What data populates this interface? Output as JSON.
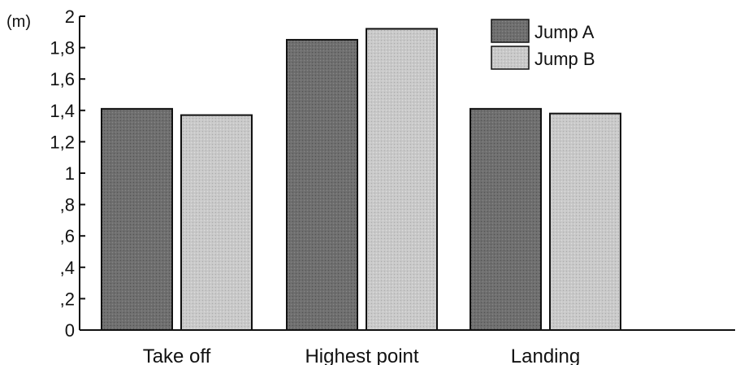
{
  "chart_data": {
    "type": "bar",
    "title": "",
    "xlabel": "",
    "ylabel": "(m)",
    "categories": [
      "Take off",
      "Highest point",
      "Landing"
    ],
    "series": [
      {
        "name": "Jump A",
        "values": [
          1.41,
          1.85,
          1.41
        ]
      },
      {
        "name": "Jump B",
        "values": [
          1.37,
          1.92,
          1.38
        ]
      }
    ],
    "ylim": [
      0,
      2
    ],
    "yticks": [
      {
        "value": 0,
        "label": "0"
      },
      {
        "value": 0.2,
        "label": ",2"
      },
      {
        "value": 0.4,
        "label": ",4"
      },
      {
        "value": 0.6,
        "label": ",6"
      },
      {
        "value": 0.8,
        "label": ",8"
      },
      {
        "value": 1.0,
        "label": "1"
      },
      {
        "value": 1.2,
        "label": "1,2"
      },
      {
        "value": 1.4,
        "label": "1,4"
      },
      {
        "value": 1.6,
        "label": "1,6"
      },
      {
        "value": 1.8,
        "label": "1,8"
      },
      {
        "value": 2.0,
        "label": "2"
      }
    ],
    "grid": false,
    "legend": {
      "position": "top-right"
    },
    "colors": {
      "series_a": "#6f6f6f",
      "series_b": "#c7c7c7",
      "outline": "#111111"
    }
  }
}
